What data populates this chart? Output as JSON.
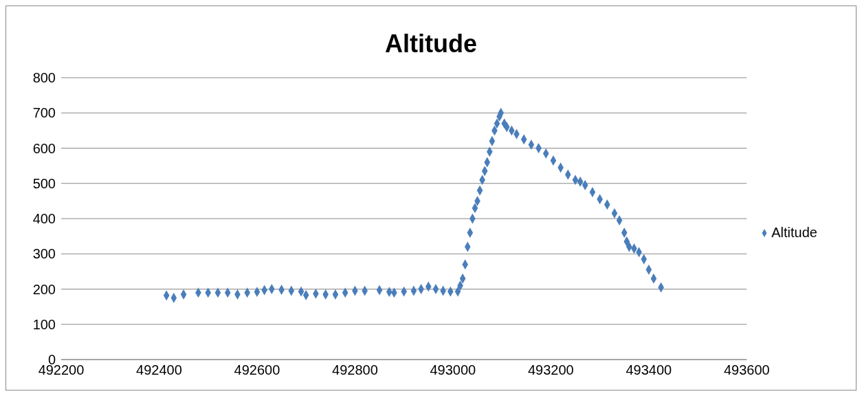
{
  "chart_data": {
    "type": "scatter",
    "title": "Altitude",
    "x": [
      492415,
      492430,
      492450,
      492480,
      492500,
      492520,
      492540,
      492560,
      492580,
      492600,
      492615,
      492630,
      492650,
      492670,
      492690,
      492700,
      492720,
      492740,
      492760,
      492780,
      492800,
      492820,
      492850,
      492870,
      492880,
      492900,
      492920,
      492935,
      492950,
      492965,
      492980,
      492995,
      493010,
      493015,
      493020,
      493025,
      493030,
      493035,
      493040,
      493045,
      493050,
      493055,
      493060,
      493065,
      493070,
      493075,
      493080,
      493085,
      493090,
      493095,
      493098,
      493105,
      493110,
      493120,
      493130,
      493145,
      493160,
      493175,
      493190,
      493205,
      493220,
      493235,
      493250,
      493260,
      493270,
      493285,
      493300,
      493315,
      493330,
      493340,
      493350,
      493355,
      493360,
      493370,
      493380,
      493390,
      493400,
      493410,
      493425
    ],
    "series": [
      {
        "name": "Altitude",
        "color": "#4a7ebb",
        "values": [
          182,
          175,
          185,
          190,
          190,
          190,
          190,
          185,
          190,
          192,
          197,
          200,
          198,
          195,
          193,
          183,
          187,
          185,
          185,
          190,
          195,
          195,
          197,
          192,
          190,
          193,
          195,
          200,
          207,
          200,
          195,
          193,
          193,
          210,
          230,
          270,
          320,
          360,
          400,
          430,
          450,
          480,
          510,
          535,
          560,
          590,
          620,
          650,
          670,
          690,
          700,
          670,
          660,
          650,
          640,
          625,
          610,
          600,
          585,
          565,
          545,
          525,
          510,
          505,
          495,
          475,
          455,
          440,
          415,
          395,
          360,
          335,
          320,
          315,
          305,
          285,
          255,
          230,
          205
        ]
      }
    ],
    "xlim": [
      492200,
      493600
    ],
    "xticks": [
      492200,
      492400,
      492600,
      492800,
      493000,
      493200,
      493400,
      493600
    ],
    "ylim": [
      0,
      800
    ],
    "yticks": [
      0,
      100,
      200,
      300,
      400,
      500,
      600,
      700,
      800
    ],
    "grid": "y",
    "legend": "right",
    "marker": "diamond"
  }
}
